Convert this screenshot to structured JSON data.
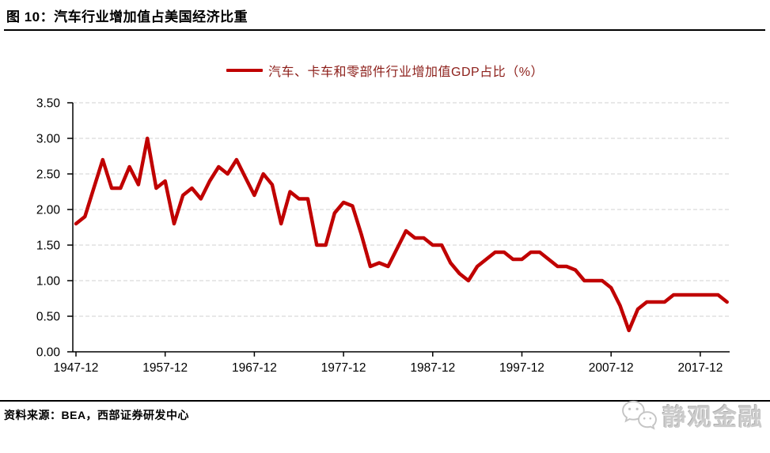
{
  "header": {
    "title": "图 10：汽车行业增加值占美国经济比重"
  },
  "legend": {
    "label": "汽车、卡车和零部件行业增加值GDP占比（%）"
  },
  "footer": {
    "source": "资料来源：BEA，西部证券研发中心",
    "logo_text": "静观金融",
    "logo_icon": "wechat-icon"
  },
  "colors": {
    "line": "#c00000",
    "legend_text": "#8c1e19",
    "grid": "#d9d9d9",
    "axis": "#000000",
    "tick_text": "#000000",
    "logo_gray": "#cbcbcb"
  },
  "chart_data": {
    "type": "line",
    "title": "汽车、卡车和零部件行业增加值GDP占比（%）",
    "legend_position": "top-center",
    "grid": "horizontal-dashed",
    "ylim": [
      0,
      3.5
    ],
    "y_ticks": [
      0,
      0.5,
      1.0,
      1.5,
      2.0,
      2.5,
      3.0,
      3.5
    ],
    "y_tick_labels": [
      "0.00",
      "0.50",
      "1.00",
      "1.50",
      "2.00",
      "2.50",
      "3.00",
      "3.50"
    ],
    "x_tick_years": [
      1947,
      1957,
      1967,
      1977,
      1987,
      1997,
      2007,
      2017
    ],
    "x_tick_labels": [
      "1947-12",
      "1957-12",
      "1967-12",
      "1977-12",
      "1987-12",
      "1997-12",
      "2007-12",
      "2017-12"
    ],
    "years": [
      1947,
      1948,
      1949,
      1950,
      1951,
      1952,
      1953,
      1954,
      1955,
      1956,
      1957,
      1958,
      1959,
      1960,
      1961,
      1962,
      1963,
      1964,
      1965,
      1966,
      1967,
      1968,
      1969,
      1970,
      1971,
      1972,
      1973,
      1974,
      1975,
      1976,
      1977,
      1978,
      1979,
      1980,
      1981,
      1982,
      1983,
      1984,
      1985,
      1986,
      1987,
      1988,
      1989,
      1990,
      1991,
      1992,
      1993,
      1994,
      1995,
      1996,
      1997,
      1998,
      1999,
      2000,
      2001,
      2002,
      2003,
      2004,
      2005,
      2006,
      2007,
      2008,
      2009,
      2010,
      2011,
      2012,
      2013,
      2014,
      2015,
      2016,
      2017,
      2018,
      2019,
      2020
    ],
    "values": [
      1.8,
      1.9,
      2.3,
      2.7,
      2.3,
      2.3,
      2.6,
      2.35,
      3.0,
      2.3,
      2.4,
      1.8,
      2.2,
      2.3,
      2.15,
      2.4,
      2.6,
      2.5,
      2.7,
      2.45,
      2.2,
      2.5,
      2.35,
      1.8,
      2.25,
      2.15,
      2.15,
      1.5,
      1.5,
      1.95,
      2.1,
      2.05,
      1.65,
      1.2,
      1.25,
      1.2,
      1.45,
      1.7,
      1.6,
      1.6,
      1.5,
      1.5,
      1.25,
      1.1,
      1.0,
      1.2,
      1.3,
      1.4,
      1.4,
      1.3,
      1.3,
      1.4,
      1.4,
      1.3,
      1.2,
      1.2,
      1.15,
      1.0,
      1.0,
      1.0,
      0.9,
      0.65,
      0.3,
      0.6,
      0.7,
      0.7,
      0.7,
      0.8,
      0.8,
      0.8,
      0.8,
      0.8,
      0.8,
      0.7
    ]
  }
}
